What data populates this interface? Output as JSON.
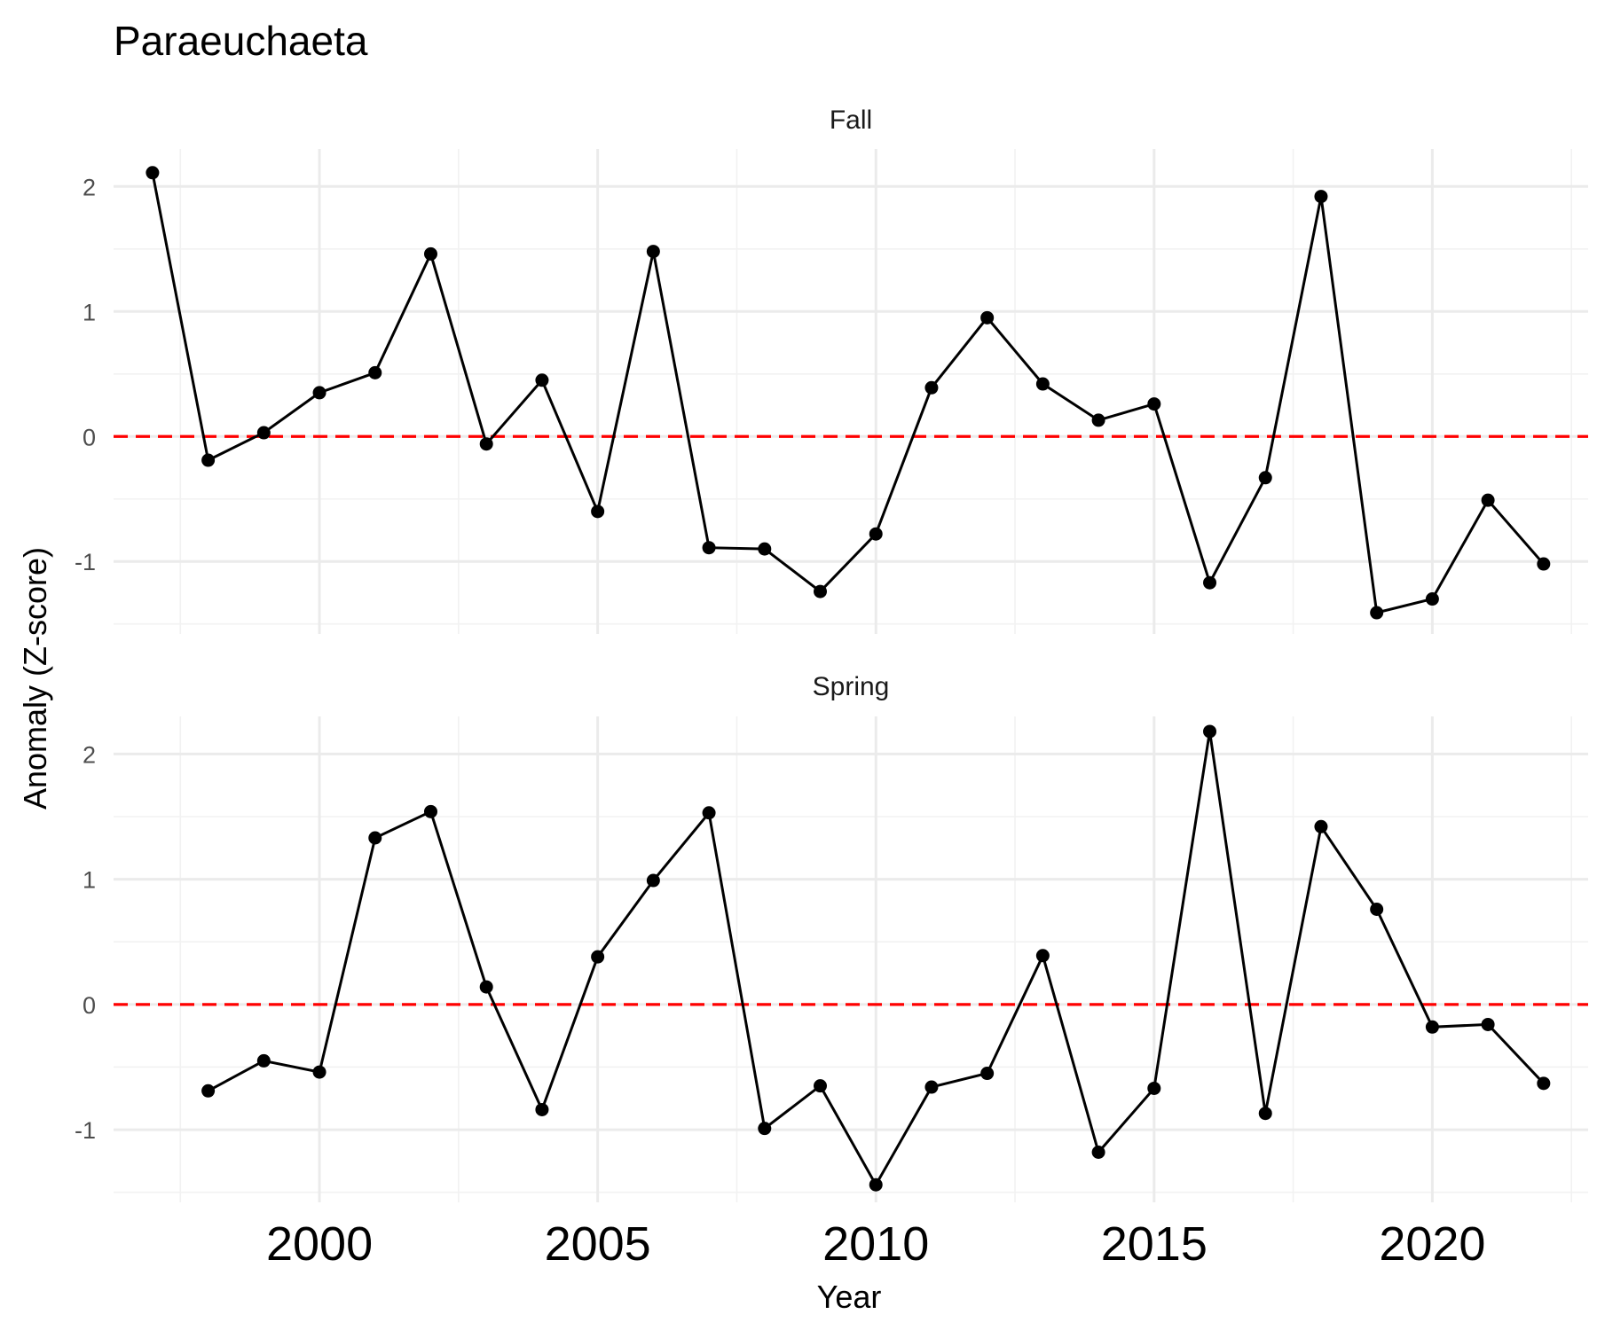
{
  "chart_data": {
    "type": "line",
    "title": "Paraeuchaeta",
    "xlabel": "Year",
    "ylabel": "Anomaly (Z-score)",
    "x_ticks": [
      2000,
      2005,
      2010,
      2015,
      2020
    ],
    "y_ticks": [
      -1,
      0,
      1,
      2
    ],
    "xlim": [
      1996.3,
      2022.8
    ],
    "ylim": [
      -1.58,
      2.3
    ],
    "reference_line": {
      "y": 0,
      "color": "#ff0000",
      "style": "dashed"
    },
    "grid": true,
    "panels": [
      {
        "name": "Fall",
        "x": [
          1997,
          1998,
          1999,
          2000,
          2001,
          2002,
          2003,
          2004,
          2005,
          2006,
          2007,
          2008,
          2009,
          2010,
          2011,
          2012,
          2013,
          2014,
          2015,
          2016,
          2017,
          2018,
          2019,
          2020,
          2021,
          2022
        ],
        "values": [
          2.11,
          -0.19,
          0.03,
          0.35,
          0.51,
          1.46,
          -0.06,
          0.45,
          -0.6,
          1.48,
          -0.89,
          -0.9,
          -1.24,
          -0.78,
          0.39,
          0.95,
          0.42,
          0.13,
          0.26,
          -1.17,
          -0.33,
          1.92,
          -1.41,
          -1.3,
          -0.51,
          -1.02
        ]
      },
      {
        "name": "Spring",
        "x": [
          1998,
          1999,
          2000,
          2001,
          2002,
          2003,
          2004,
          2005,
          2006,
          2007,
          2008,
          2009,
          2010,
          2011,
          2012,
          2013,
          2014,
          2015,
          2016,
          2017,
          2018,
          2019,
          2020,
          2021,
          2022
        ],
        "values": [
          -0.69,
          -0.45,
          -0.54,
          1.33,
          1.54,
          0.14,
          -0.84,
          0.38,
          0.99,
          1.53,
          -0.99,
          -0.65,
          -1.44,
          -0.66,
          -0.55,
          0.39,
          -1.18,
          -0.67,
          2.18,
          -0.87,
          1.42,
          0.76,
          -0.18,
          -0.16,
          -0.63
        ]
      }
    ]
  }
}
